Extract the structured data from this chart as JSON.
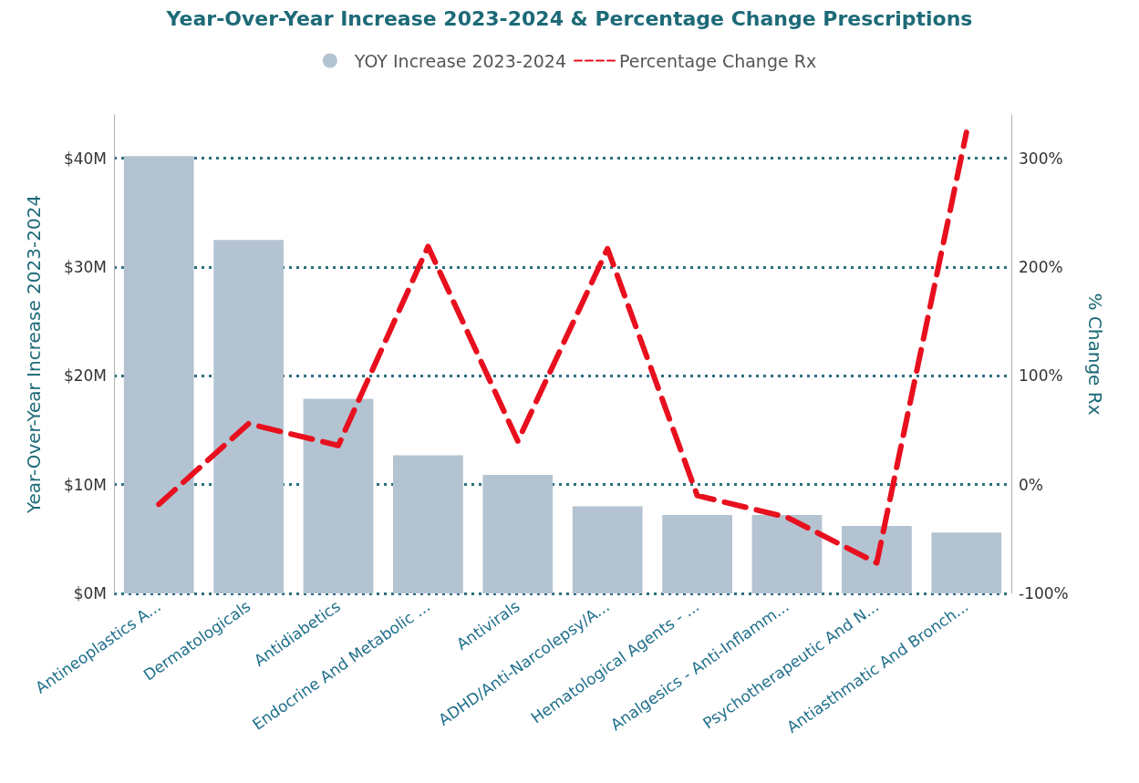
{
  "chart_data": {
    "type": "bar",
    "title": "Year-Over-Year Increase 2023-2024 & Percentage Change Prescriptions",
    "categories": [
      "Antineoplastics A...",
      "Dermatologicals",
      "Antidiabetics",
      "Endocrine And Metabolic ...",
      "Antivirals",
      "ADHD/Anti-Narcolepsy/A...",
      "Hematological Agents - ...",
      "Analgesics - Anti-Inflamm...",
      "Psychotherapeutic And N...",
      "Antiasthmatic And Bronch..."
    ],
    "series": [
      {
        "name": "YOY Increase 2023-2024",
        "color": "#b3c3d1",
        "values": [
          40.2,
          32.5,
          17.9,
          12.7,
          10.9,
          8.0,
          7.2,
          7.2,
          6.2,
          5.6
        ]
      },
      {
        "name": "Percentage Change Rx",
        "type": "line",
        "axis": "y2",
        "color": "#e8101e",
        "line_style": "dashed",
        "marker": "none",
        "values": [
          -18,
          56,
          36,
          219,
          40,
          217,
          -10,
          -30,
          -72,
          324
        ]
      }
    ],
    "ylabel": "Year-Over-Year Increase 2023-2024",
    "y2label": "% Change Rx",
    "ylim": [
      0,
      44
    ],
    "yticks": [
      {
        "value": 0,
        "label": "$0M"
      },
      {
        "value": 10,
        "label": "$10M"
      },
      {
        "value": 20,
        "label": "$20M"
      },
      {
        "value": 30,
        "label": "$30M"
      },
      {
        "value": 40,
        "label": "$40M"
      }
    ],
    "y2lim": [
      -100,
      340
    ],
    "y2ticks": [
      {
        "value": -100,
        "label": "-100%"
      },
      {
        "value": 0,
        "label": "0%"
      },
      {
        "value": 100,
        "label": "100%"
      },
      {
        "value": 200,
        "label": "200%"
      },
      {
        "value": 300,
        "label": "300%"
      }
    ],
    "grid": "y",
    "legend": "top"
  }
}
